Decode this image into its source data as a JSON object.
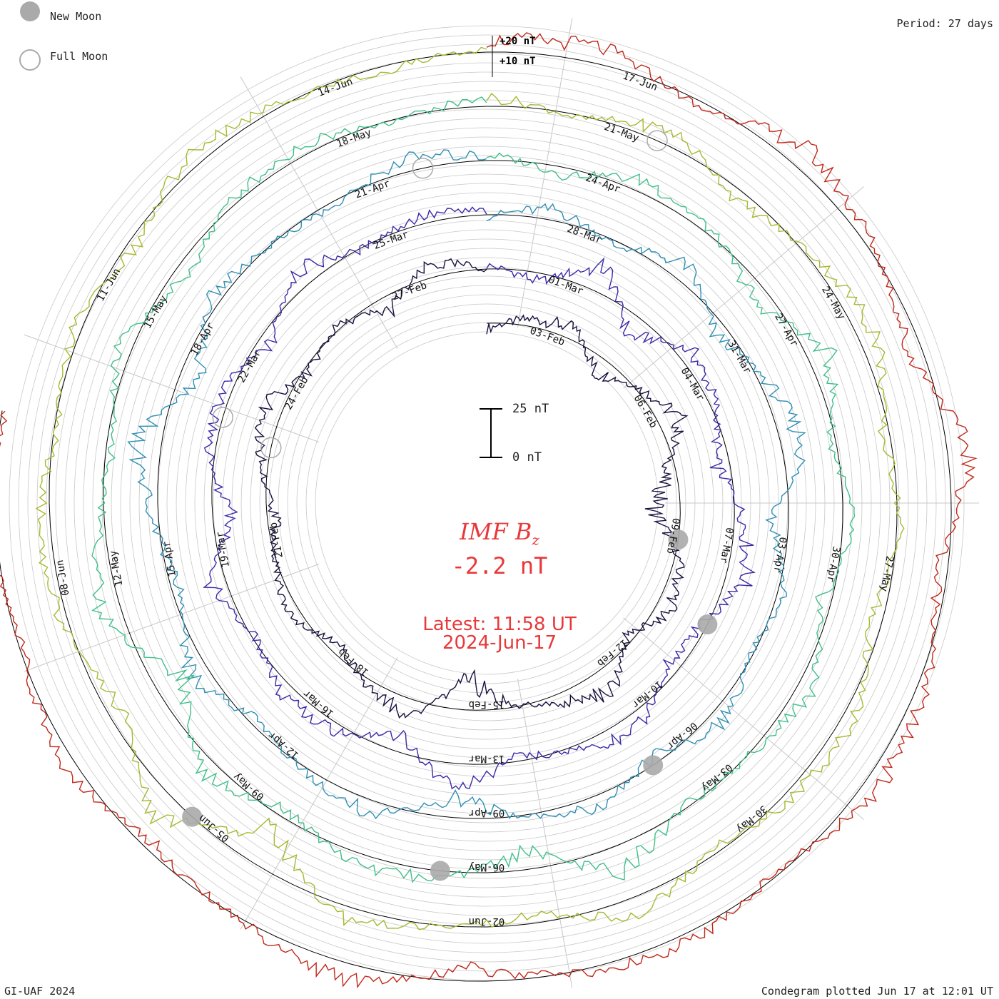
{
  "legend": {
    "new_moon": "New Moon",
    "full_moon": "Full Moon"
  },
  "period": "Period: 27 days",
  "credit": "GI-UAF 2024",
  "plotted": "Condegram plotted Jun 17 at 12:01 UT",
  "scale": {
    "top_label": "25 nT",
    "bottom_label": "0 nT"
  },
  "center": {
    "title": "IMF B",
    "title_sub": "z",
    "value": "-2.2 nT",
    "latest_time": "Latest: 11:58 UT",
    "latest_date": "2024-Jun-17"
  },
  "colors": {
    "text_red": "#e8383a",
    "grid": "#c8c8c8",
    "baseline": "#000000",
    "moon_fill": "#aaaaaa",
    "moon_ring": "#aaaaaa"
  },
  "chart_data": {
    "type": "line",
    "title": "IMF Bz",
    "subtitle": "-2.2 nT",
    "layout": "spiral condegram, one ring per 27-day rotation",
    "period_days": 27,
    "series_unit": "nT",
    "ring_labels": [
      "+20 nT",
      "+10 nT"
    ],
    "rotations": [
      {
        "name": "Rotation 1",
        "color": "#1a1040",
        "date_labels": [
          "03-Feb",
          "06-Feb",
          "09-Feb",
          "12-Feb",
          "15-Feb",
          "18-Feb",
          "21-Feb",
          "24-Feb",
          "27-Feb"
        ],
        "bz_samples": [
          -3,
          4,
          6,
          -9,
          2,
          11,
          -6,
          -14,
          3,
          8,
          -4,
          12,
          5,
          -2,
          -18,
          9,
          3,
          -7,
          6,
          1,
          -5,
          4,
          10,
          -3,
          2,
          -8,
          7,
          0
        ]
      },
      {
        "name": "Rotation 2",
        "color": "#3a2aa8",
        "date_labels": [
          "01-Mar",
          "04-Mar",
          "07-Mar",
          "10-Mar",
          "13-Mar",
          "16-Mar",
          "19-Mar",
          "22-Mar",
          "25-Mar"
        ],
        "bz_samples": [
          2,
          -5,
          14,
          -12,
          7,
          3,
          -8,
          5,
          11,
          -4,
          -6,
          9,
          2,
          -3,
          15,
          -10,
          4,
          6,
          -2,
          8,
          -11,
          3,
          5,
          -7,
          10,
          -1,
          4,
          2
        ]
      },
      {
        "name": "Rotation 3",
        "color": "#2f8fb3",
        "date_labels": [
          "28-Mar",
          "31-Mar",
          "03-Apr",
          "06-Apr",
          "09-Apr",
          "12-Apr",
          "15-Apr",
          "18-Apr",
          "21-Apr"
        ],
        "bz_samples": [
          -1,
          6,
          -3,
          9,
          -7,
          4,
          12,
          -9,
          3,
          -2,
          8,
          -5,
          6,
          1,
          -12,
          7,
          2,
          -4,
          10,
          -6,
          3,
          14,
          -11,
          5,
          0,
          -3,
          7,
          2
        ]
      },
      {
        "name": "Rotation 4",
        "color": "#3fbf8a",
        "date_labels": [
          "24-Apr",
          "27-Apr",
          "30-Apr",
          "03-May",
          "06-May",
          "09-May",
          "12-May",
          "15-May",
          "18-May"
        ],
        "bz_samples": [
          3,
          -4,
          7,
          2,
          -9,
          11,
          -3,
          5,
          -6,
          8,
          1,
          -2,
          13,
          -10,
          4,
          6,
          -5,
          9,
          -17,
          12,
          2,
          -4,
          7,
          -8,
          3,
          5,
          -1,
          4
        ]
      },
      {
        "name": "Rotation 5",
        "color": "#a8b830",
        "date_labels": [
          "21-May",
          "24-May",
          "27-May",
          "30-May",
          "02-Jun",
          "05-Jun",
          "08-Jun",
          "11-Jun",
          "14-Jun"
        ],
        "bz_samples": [
          5,
          -2,
          8,
          -6,
          3,
          10,
          -4,
          2,
          -7,
          6,
          4,
          -3,
          9,
          -5,
          1,
          7,
          -22,
          14,
          -8,
          3,
          6,
          -2,
          4,
          -5,
          8,
          1,
          -3,
          2
        ]
      },
      {
        "name": "Rotation 6",
        "color": "#c0281a",
        "date_labels": [
          "17-Jun"
        ],
        "bz_samples": [
          6,
          9,
          -4,
          11,
          3,
          -8,
          12,
          -6,
          4,
          8,
          -3,
          5,
          2,
          -7,
          10,
          1,
          -5,
          7,
          -2,
          3,
          -2
        ]
      }
    ],
    "moon_markers": [
      {
        "type": "new",
        "date": "10-Feb"
      },
      {
        "type": "new",
        "date": "10-Mar"
      },
      {
        "type": "new",
        "date": "08-Apr"
      },
      {
        "type": "new",
        "date": "08-May"
      },
      {
        "type": "new",
        "date": "06-Jun"
      },
      {
        "type": "full",
        "date": "24-Feb"
      },
      {
        "type": "full",
        "date": "25-Mar"
      },
      {
        "type": "full",
        "date": "23-Apr"
      },
      {
        "type": "full",
        "date": "23-May"
      }
    ]
  }
}
